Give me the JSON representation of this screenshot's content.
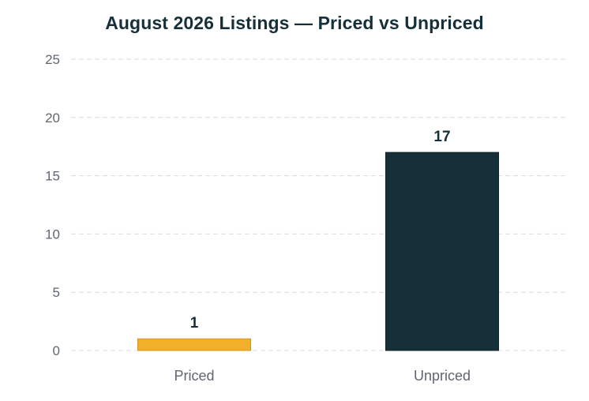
{
  "chart_data": {
    "type": "bar",
    "title": "August 2026 Listings — Priced vs Unpriced",
    "xlabel": "",
    "ylabel": "",
    "categories": [
      "Priced",
      "Unpriced"
    ],
    "values": [
      1,
      17
    ],
    "colors": [
      "#f2b02a",
      "#163039"
    ],
    "edge_colors": [
      "#d7951c",
      "#0f2228"
    ],
    "ylim": [
      0,
      25
    ],
    "yticks": [
      0,
      5,
      10,
      15,
      20,
      25
    ],
    "grid": true,
    "value_labels": true,
    "legend": "none"
  },
  "colors": {
    "title": "#163039",
    "tick_text": "#5f6670",
    "grid": "#dcdcdc"
  }
}
